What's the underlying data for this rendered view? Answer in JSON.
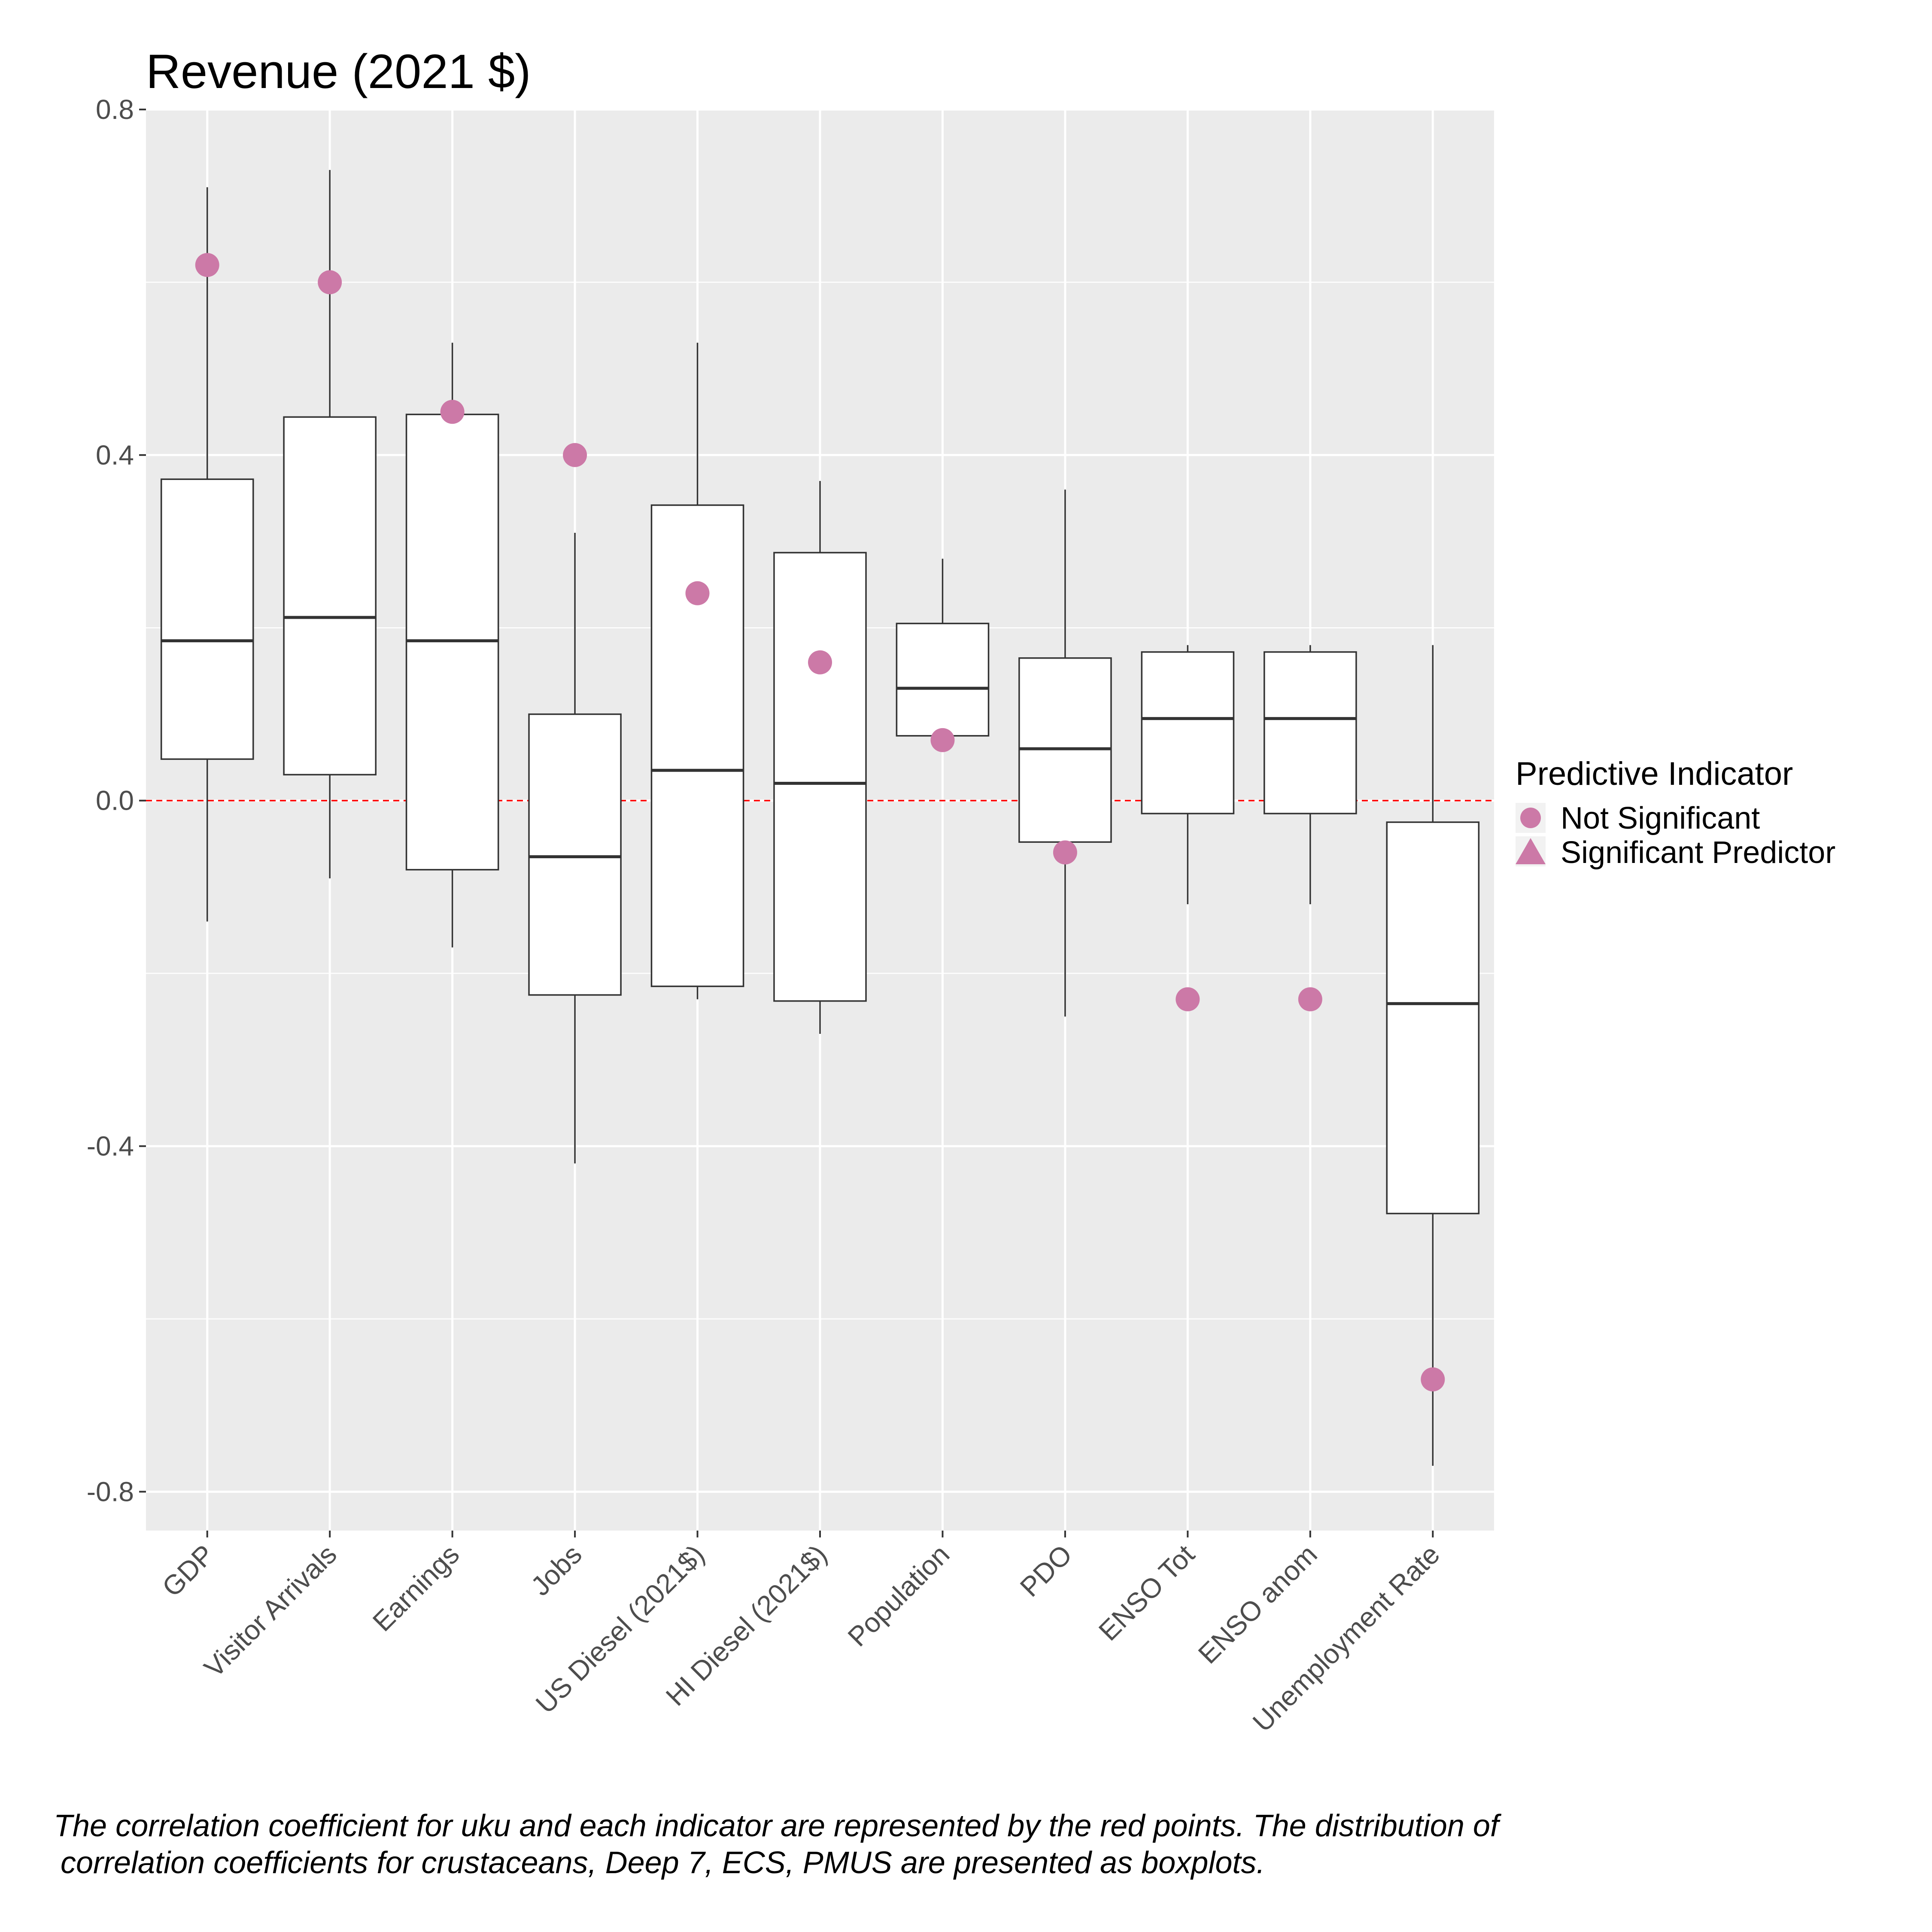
{
  "chart_data": {
    "type": "boxplot",
    "title": "Revenue (2021 $)",
    "xlabel": "",
    "ylabel": "",
    "ylim": [
      -0.845,
      0.8
    ],
    "yticks": [
      -0.8,
      -0.4,
      0.0,
      0.4,
      0.8
    ],
    "ytick_labels": [
      "-0.8",
      "-0.4",
      "0.0",
      "0.4",
      "0.8"
    ],
    "grid": true,
    "reference_line": {
      "y": 0.0,
      "style": "dashed",
      "color": "#ff0000"
    },
    "categories": [
      "GDP",
      "Visitor Arrivals",
      "Earnings",
      "Jobs",
      "US Diesel (2021$)",
      "HI Diesel (2021$)",
      "Population",
      "PDO",
      "ENSO Tot",
      "ENSO anom",
      "Unemployment Rate"
    ],
    "boxes": [
      {
        "whisker_low": -0.14,
        "q1": 0.048,
        "median": 0.185,
        "q3": 0.372,
        "whisker_high": 0.71
      },
      {
        "whisker_low": -0.09,
        "q1": 0.03,
        "median": 0.212,
        "q3": 0.444,
        "whisker_high": 0.73
      },
      {
        "whisker_low": -0.17,
        "q1": -0.08,
        "median": 0.185,
        "q3": 0.447,
        "whisker_high": 0.53
      },
      {
        "whisker_low": -0.42,
        "q1": -0.225,
        "median": -0.065,
        "q3": 0.1,
        "whisker_high": 0.31
      },
      {
        "whisker_low": -0.23,
        "q1": -0.215,
        "median": 0.035,
        "q3": 0.342,
        "whisker_high": 0.53
      },
      {
        "whisker_low": -0.27,
        "q1": -0.232,
        "median": 0.02,
        "q3": 0.287,
        "whisker_high": 0.37
      },
      {
        "whisker_low": 0.075,
        "q1": 0.075,
        "median": 0.13,
        "q3": 0.205,
        "whisker_high": 0.28
      },
      {
        "whisker_low": -0.25,
        "q1": -0.048,
        "median": 0.06,
        "q3": 0.165,
        "whisker_high": 0.36
      },
      {
        "whisker_low": -0.12,
        "q1": -0.015,
        "median": 0.095,
        "q3": 0.172,
        "whisker_high": 0.18
      },
      {
        "whisker_low": -0.12,
        "q1": -0.015,
        "median": 0.095,
        "q3": 0.172,
        "whisker_high": 0.18
      },
      {
        "whisker_low": -0.77,
        "q1": -0.478,
        "median": -0.235,
        "q3": -0.025,
        "whisker_high": 0.18
      }
    ],
    "points": {
      "values": [
        0.62,
        0.6,
        0.45,
        0.4,
        0.24,
        0.16,
        0.07,
        -0.06,
        -0.23,
        -0.23,
        -0.67
      ],
      "shape": [
        "circle",
        "circle",
        "circle",
        "circle",
        "circle",
        "circle",
        "circle",
        "circle",
        "circle",
        "circle",
        "circle"
      ],
      "color": "#cc79a7"
    },
    "legend": {
      "title": "Predictive Indicator",
      "position": "right",
      "entries": [
        {
          "label": "Not Significant",
          "shape": "circle"
        },
        {
          "label": "Significant Predictor",
          "shape": "triangle"
        }
      ]
    }
  },
  "caption": {
    "line1": "The correlation coefficient for uku and each indicator are represented by the red points. The distribution of",
    "line2": "correlation coefficients for crustaceans, Deep 7, ECS, PMUS are presented as boxplots."
  },
  "colors": {
    "panel_background": "#ebebeb",
    "grid": "#ffffff",
    "point": "#cc79a7",
    "reference_line": "#ff0000"
  }
}
